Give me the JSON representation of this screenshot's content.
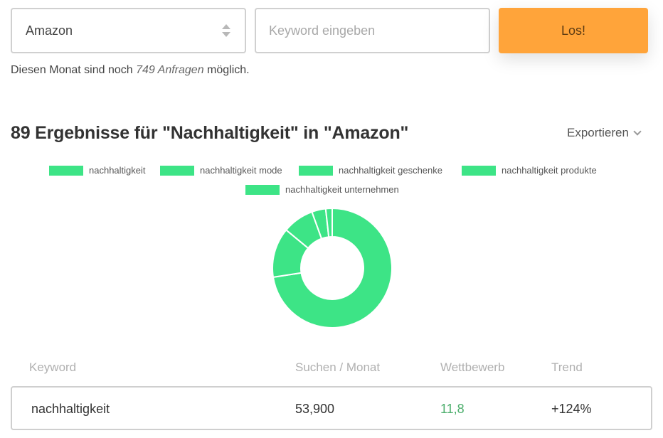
{
  "search": {
    "source_select": "Amazon",
    "keyword_placeholder": "Keyword eingeben",
    "keyword_value": "",
    "submit_label": "Los!"
  },
  "quota": {
    "prefix": "Diesen Monat sind noch",
    "count": "749 Anfragen",
    "suffix": "möglich."
  },
  "results": {
    "title": "89 Ergebnisse für \"Nachhaltigkeit\" in \"Amazon\"",
    "export_label": "Exportieren"
  },
  "colors": {
    "accent": "#ffa43a",
    "chart_green": "#3de486",
    "competition_green": "#4cae6c"
  },
  "chart_data": {
    "type": "pie",
    "donut": true,
    "legend": [
      "nachhaltigkeit",
      "nachhaltigkeit mode",
      "nachhaltigkeit geschenke",
      "nachhaltigkeit produkte",
      "nachhaltigkeit unternehmen"
    ],
    "values": [
      53900,
      10000,
      6300,
      2800,
      1300
    ],
    "colors": [
      "#3de486",
      "#3de486",
      "#3de486",
      "#3de486",
      "#3de486"
    ]
  },
  "table": {
    "headers": [
      "Keyword",
      "Suchen / Monat",
      "Wettbewerb",
      "Trend"
    ],
    "rows": [
      {
        "keyword": "nachhaltigkeit",
        "searches": "53,900",
        "competition": "11,8",
        "trend": "+124%"
      }
    ]
  }
}
